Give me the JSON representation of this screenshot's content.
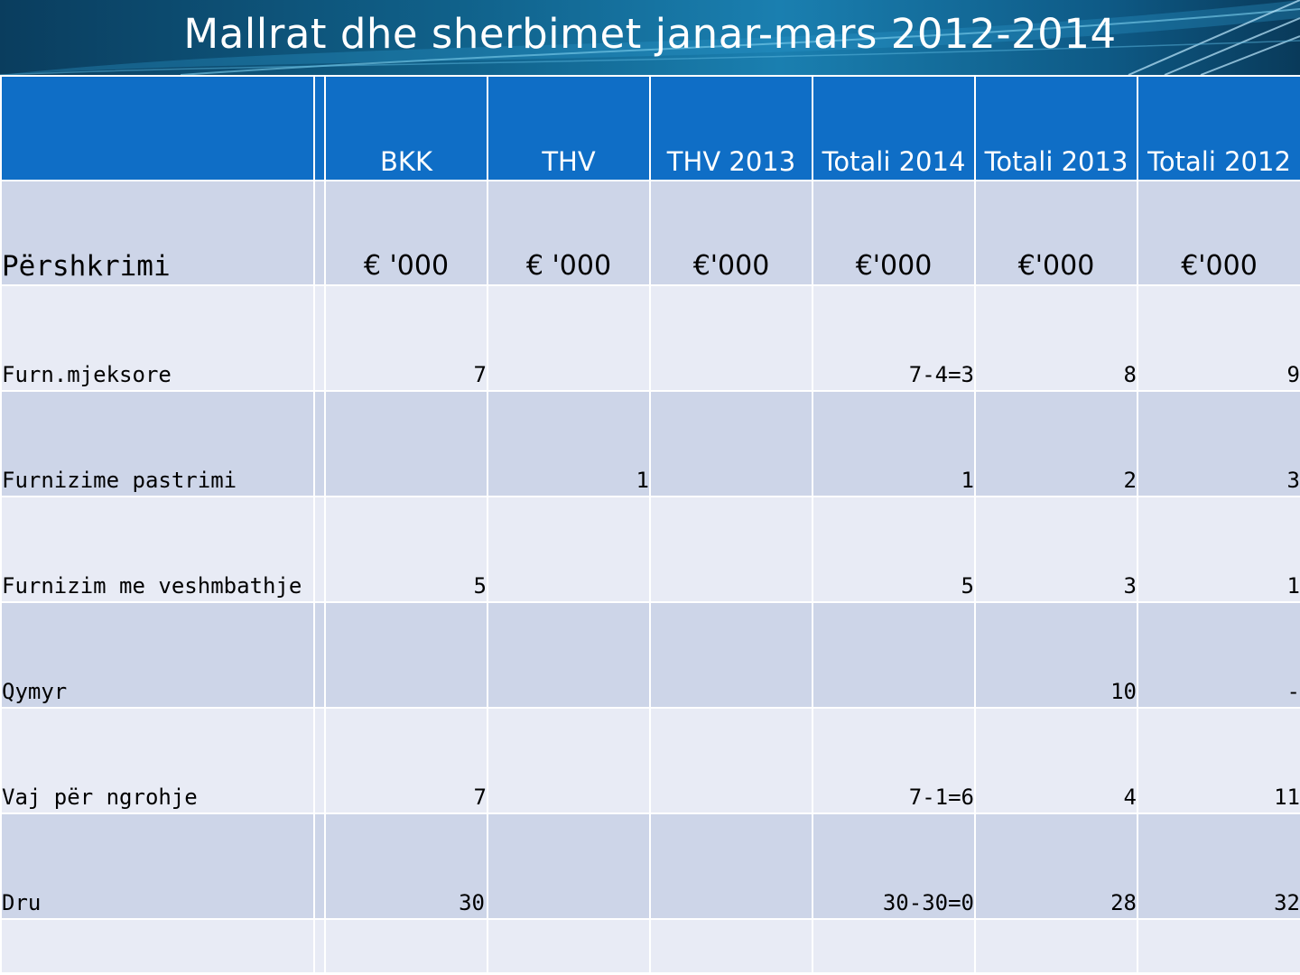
{
  "title": "Mallrat dhe sherbimet janar-mars   2012-2014",
  "header": {
    "columns": [
      "",
      "BKK",
      "THV",
      "THV 2013",
      "Totali 2014",
      "Totali 2013",
      "Totali 2012"
    ]
  },
  "units": {
    "label": "Përshkrimi",
    "values": [
      "€ '000",
      "€ '000",
      "€'000",
      "€'000",
      "€'000",
      "€'000"
    ]
  },
  "rows": [
    {
      "label": "Furn.mjeksore",
      "values": [
        "7",
        "",
        "",
        "7-4=3",
        "8",
        "9"
      ]
    },
    {
      "label": "Furnizime pastrimi",
      "values": [
        "",
        "1",
        "",
        "1",
        "2",
        "3"
      ]
    },
    {
      "label": "Furnizim me veshmbathje",
      "values": [
        "5",
        "",
        "",
        "5",
        "3",
        "1"
      ]
    },
    {
      "label": "Qymyr",
      "values": [
        "",
        "",
        "",
        "",
        "10",
        "-"
      ]
    },
    {
      "label": "Vaj për ngrohje",
      "values": [
        "7",
        "",
        "",
        "7-1=6",
        "4",
        "11"
      ]
    },
    {
      "label": "Dru",
      "values": [
        "30",
        "",
        "",
        "30-30=0",
        "28",
        "32"
      ]
    }
  ],
  "colors": {
    "header_blue": "#0f6ec6",
    "row_dark": "#cdd5e8",
    "row_light": "#e8ebf5"
  }
}
